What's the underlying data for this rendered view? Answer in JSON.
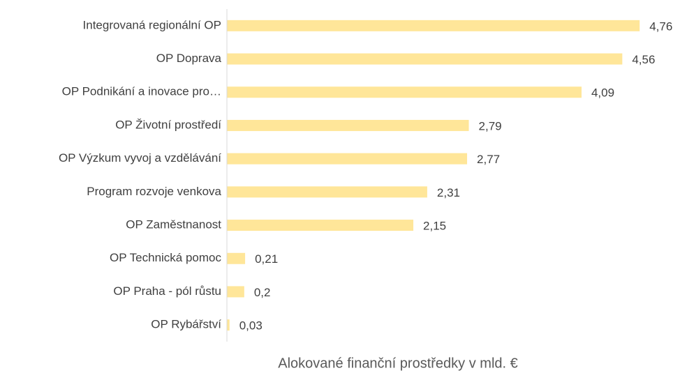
{
  "chart_data": {
    "type": "barh",
    "categories": [
      "Integrovaná regionální OP",
      "OP Doprava",
      "OP Podnikání a inovace pro…",
      "OP Životní prostředí",
      "OP Výzkum vyvoj a vzdělávání",
      "Program rozvoje venkova",
      "OP Zaměstnanost",
      "OP Technická pomoc",
      "OP Praha - pól růstu",
      "OP Rybářství"
    ],
    "values": [
      4.76,
      4.56,
      4.09,
      2.79,
      2.77,
      2.31,
      2.15,
      0.21,
      0.2,
      0.03
    ],
    "value_labels": [
      "4,76",
      "4,56",
      "4,09",
      "2,79",
      "2,77",
      "2,31",
      "2,15",
      "0,21",
      "0,2",
      "0,03"
    ],
    "color": "#ffe699",
    "xlim": [
      0,
      5
    ],
    "xlabel": "Alokované finanční prostředky v mld. €"
  }
}
